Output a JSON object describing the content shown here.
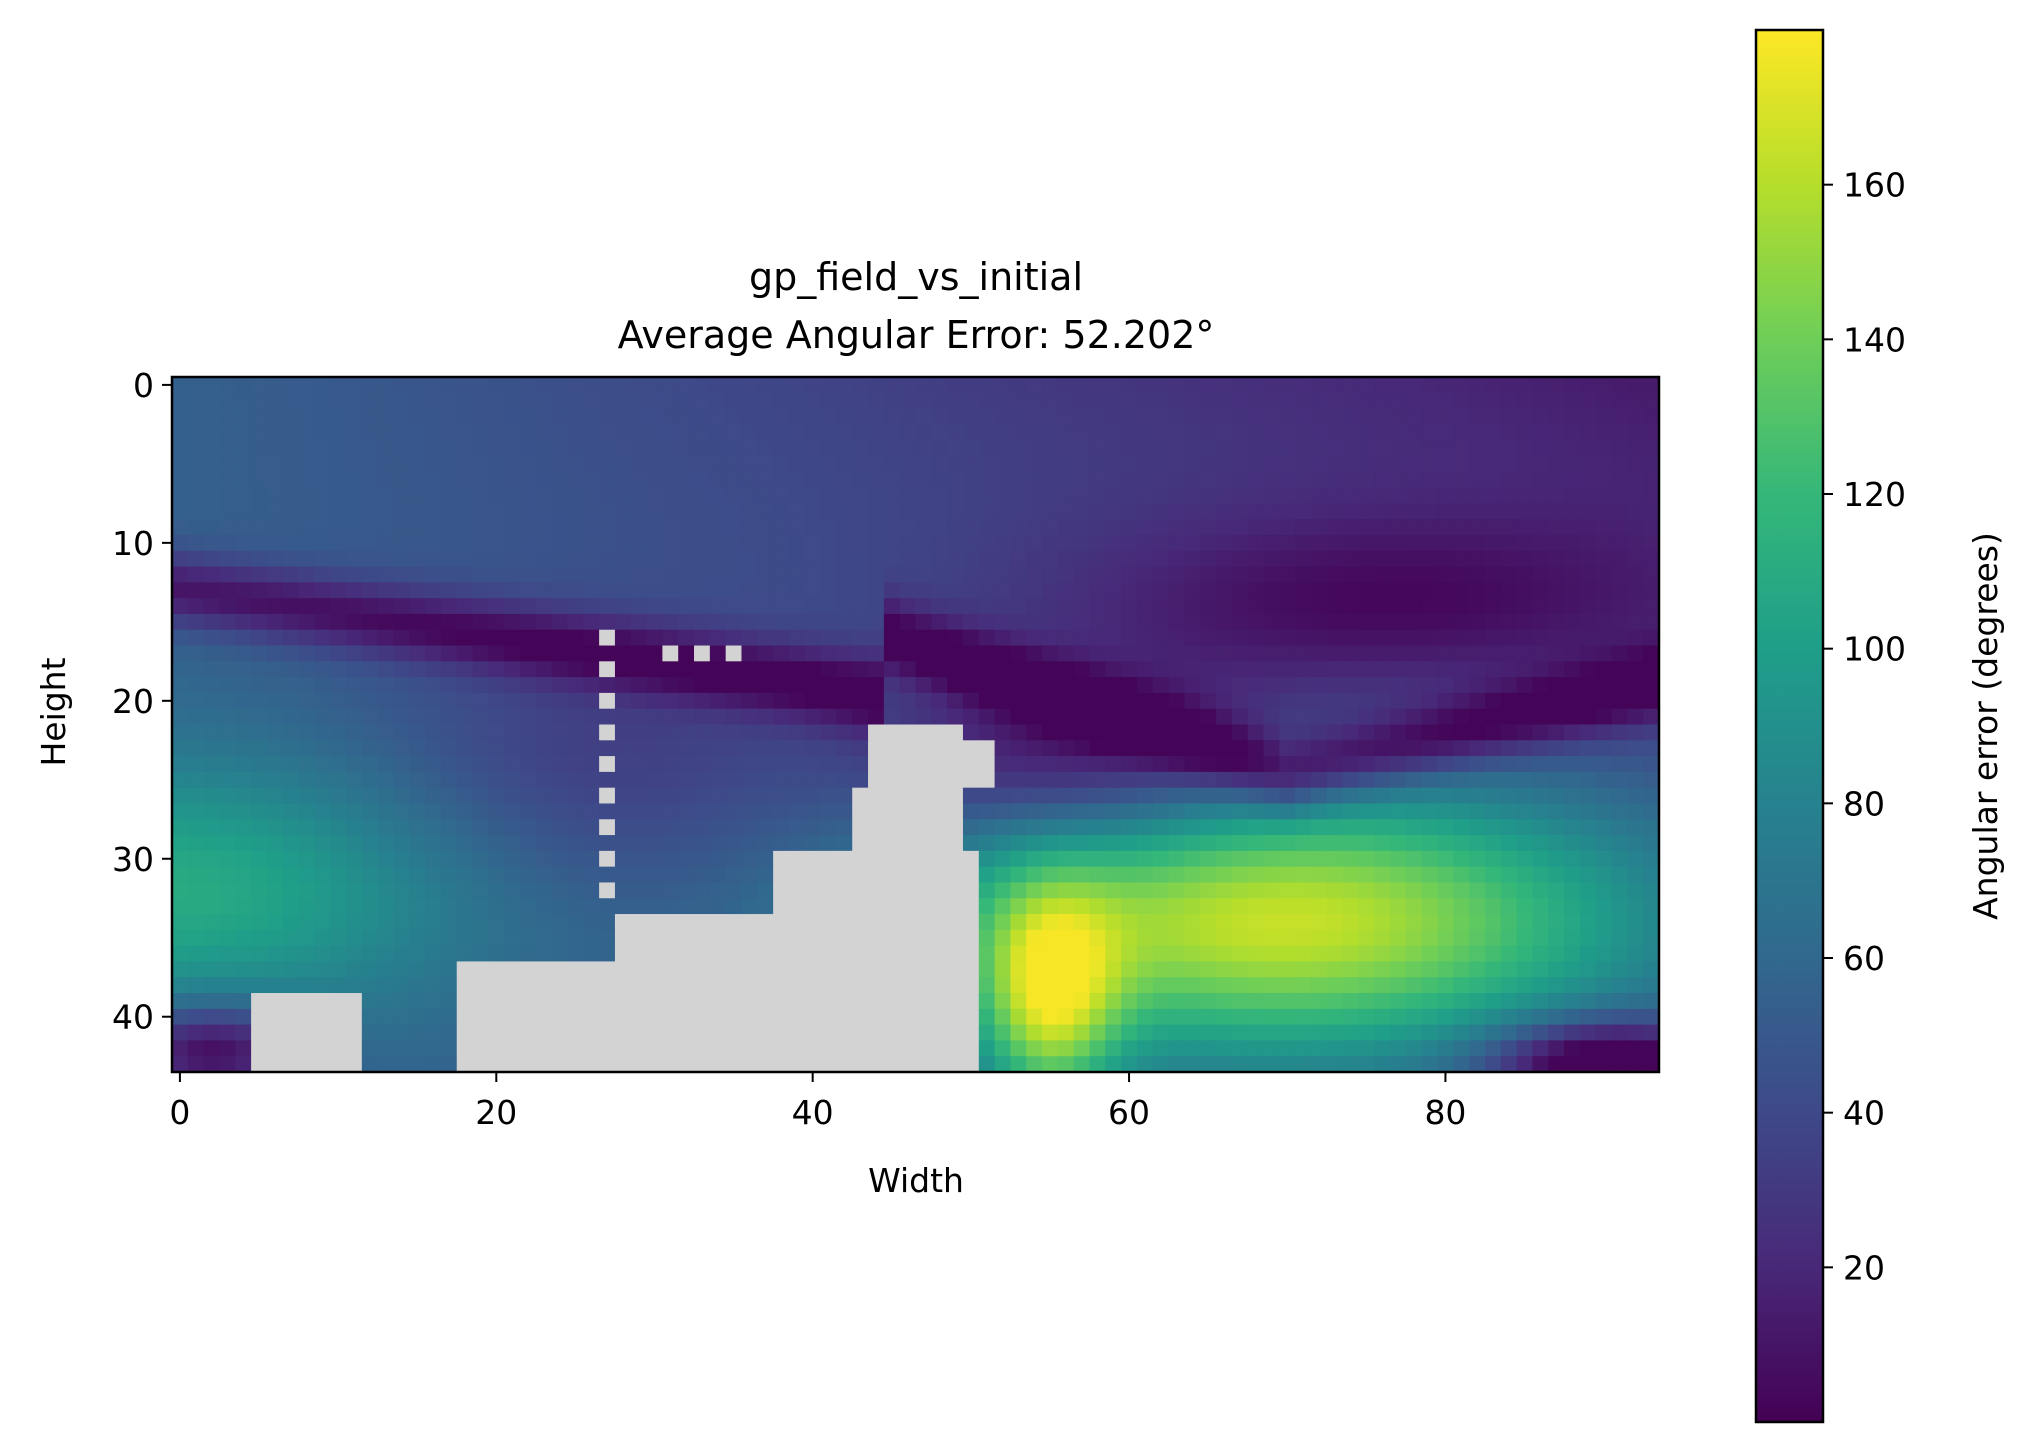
{
  "chart_data": {
    "type": "heatmap",
    "title_lines": [
      "gp_field_vs_initial",
      "Average Angular Error: 52.202°"
    ],
    "xlabel": "Width",
    "ylabel": "Height",
    "xlim": [
      -0.5,
      93.5
    ],
    "ylim": [
      43.5,
      -0.5
    ],
    "grid_size": {
      "cols": 94,
      "rows": 44
    },
    "x_ticks": [
      0,
      20,
      40,
      60,
      80
    ],
    "x_tick_labels": [
      "0",
      "20",
      "40",
      "60",
      "80"
    ],
    "y_ticks": [
      0,
      10,
      20,
      30,
      40
    ],
    "y_tick_labels": [
      "0",
      "10",
      "20",
      "30",
      "40"
    ],
    "masked_color": "#d3d3d3",
    "colormap": "viridis",
    "colorbar": {
      "label": "Angular error (degrees)",
      "range": [
        0,
        180
      ],
      "ticks": [
        20,
        40,
        60,
        80,
        100,
        120,
        140,
        160
      ],
      "tick_labels": [
        "20",
        "40",
        "60",
        "80",
        "100",
        "120",
        "140",
        "160"
      ]
    },
    "field_description_points": [
      {
        "x": 5,
        "y": 3,
        "value": 52
      },
      {
        "x": 20,
        "y": 5,
        "value": 42
      },
      {
        "x": 45,
        "y": 5,
        "value": 30
      },
      {
        "x": 70,
        "y": 5,
        "value": 20
      },
      {
        "x": 90,
        "y": 5,
        "value": 8
      },
      {
        "x": 5,
        "y": 16,
        "value": 5
      },
      {
        "x": 5,
        "y": 25,
        "value": 70
      },
      {
        "x": 5,
        "y": 33,
        "value": 100
      },
      {
        "x": 25,
        "y": 25,
        "value": 40
      },
      {
        "x": 60,
        "y": 25,
        "value": 10
      },
      {
        "x": 70,
        "y": 12,
        "value": 8
      },
      {
        "x": 65,
        "y": 34,
        "value": 150
      },
      {
        "x": 85,
        "y": 28,
        "value": 125
      },
      {
        "x": 58,
        "y": 38,
        "value": 175
      },
      {
        "x": 90,
        "y": 42,
        "value": 5
      }
    ]
  },
  "colors": {
    "masked": "#d3d3d3",
    "viridis_stops": [
      "#440154",
      "#482878",
      "#3e4989",
      "#31688e",
      "#26828e",
      "#1f9e89",
      "#35b779",
      "#6ece58",
      "#b5de2b",
      "#fde725"
    ]
  }
}
